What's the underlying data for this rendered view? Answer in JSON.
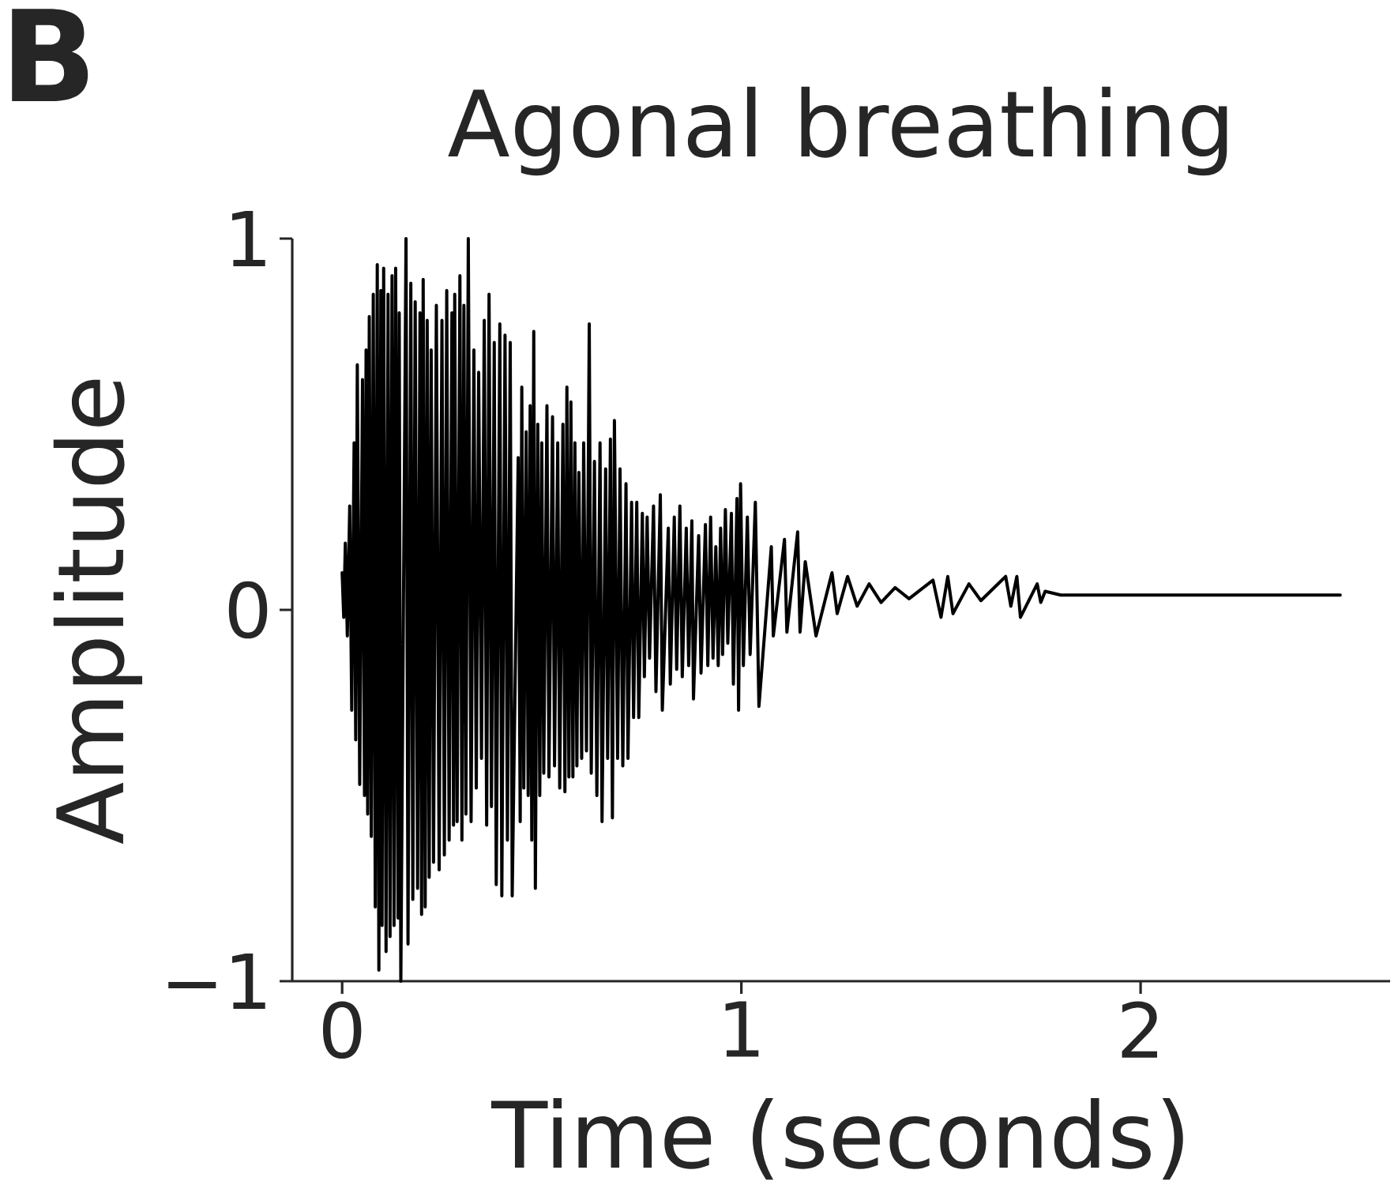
{
  "chart_data": {
    "type": "line",
    "title": "Agonal breathing",
    "xlabel": "Time (seconds)",
    "ylabel": "Amplitude",
    "annotations": [
      "B"
    ],
    "x": [
      0,
      0.004,
      0.008,
      0.013,
      0.019,
      0.024,
      0.03,
      0.034,
      0.038,
      0.044,
      0.051,
      0.056,
      0.06,
      0.064,
      0.068,
      0.073,
      0.078,
      0.083,
      0.088,
      0.092,
      0.097,
      0.1,
      0.104,
      0.11,
      0.115,
      0.12,
      0.125,
      0.13,
      0.134,
      0.14,
      0.143,
      0.147,
      0.16,
      0.165,
      0.172,
      0.177,
      0.183,
      0.189,
      0.195,
      0.199,
      0.203,
      0.208,
      0.213,
      0.218,
      0.223,
      0.229,
      0.236,
      0.243,
      0.25,
      0.256,
      0.262,
      0.268,
      0.275,
      0.279,
      0.282,
      0.288,
      0.295,
      0.3,
      0.305,
      0.31,
      0.316,
      0.323,
      0.33,
      0.336,
      0.342,
      0.349,
      0.356,
      0.362,
      0.368,
      0.374,
      0.381,
      0.386,
      0.395,
      0.4,
      0.408,
      0.414,
      0.421,
      0.426,
      0.441,
      0.446,
      0.45,
      0.455,
      0.461,
      0.466,
      0.471,
      0.475,
      0.48,
      0.484,
      0.49,
      0.495,
      0.5,
      0.505,
      0.513,
      0.518,
      0.527,
      0.532,
      0.54,
      0.545,
      0.553,
      0.558,
      0.563,
      0.568,
      0.573,
      0.578,
      0.583,
      0.588,
      0.593,
      0.6,
      0.605,
      0.612,
      0.619,
      0.624,
      0.632,
      0.638,
      0.646,
      0.651,
      0.66,
      0.665,
      0.672,
      0.677,
      0.682,
      0.69,
      0.696,
      0.703,
      0.711,
      0.716,
      0.725,
      0.73,
      0.738,
      0.743,
      0.752,
      0.757,
      0.764,
      0.77,
      0.78,
      0.786,
      0.797,
      0.802,
      0.817,
      0.822,
      0.832,
      0.838,
      0.846,
      0.852,
      0.862,
      0.868,
      0.876,
      0.88,
      0.893,
      0.899,
      0.91,
      0.916,
      0.923,
      0.929,
      0.936,
      0.942,
      0.948,
      0.953,
      0.96,
      0.966,
      0.975,
      0.98,
      0.989,
      0.993,
      0.998,
      1.005,
      1.015,
      1.022,
      1.035,
      1.044,
      1.075,
      1.08,
      1.108,
      1.114,
      1.141,
      1.147,
      1.16,
      1.187,
      1.227,
      1.24,
      1.266,
      1.29,
      1.32,
      1.35,
      1.385,
      1.42,
      1.48,
      1.5,
      1.517,
      1.53,
      1.57,
      1.6,
      1.662,
      1.675,
      1.69,
      1.699,
      1.741,
      1.75,
      1.761,
      1.8,
      2.0,
      2.25,
      2.5
    ],
    "series": [
      {
        "color": "#000000",
        "values": [
          0.1,
          -0.02,
          0.18,
          -0.07,
          0.28,
          -0.27,
          0.45,
          -0.35,
          0.66,
          -0.47,
          0.62,
          -0.5,
          0.7,
          -0.55,
          0.79,
          -0.61,
          0.85,
          -0.8,
          0.93,
          -0.97,
          0.86,
          -0.85,
          0.92,
          -0.92,
          0.85,
          -0.88,
          0.9,
          -0.85,
          0.92,
          -0.83,
          0.8,
          -1.0,
          1.0,
          -0.9,
          0.88,
          -0.78,
          0.83,
          -0.75,
          0.8,
          -0.82,
          0.89,
          -0.8,
          0.78,
          -0.72,
          0.7,
          -0.68,
          0.82,
          -0.7,
          0.78,
          -0.66,
          0.86,
          -0.62,
          0.8,
          -0.58,
          0.85,
          -0.57,
          0.9,
          -0.62,
          0.82,
          -0.55,
          1.0,
          -0.57,
          0.7,
          -0.48,
          0.64,
          -0.4,
          0.78,
          -0.58,
          0.85,
          -0.53,
          0.72,
          -0.74,
          0.77,
          -0.77,
          0.74,
          -0.62,
          0.72,
          -0.77,
          0.41,
          -0.57,
          0.6,
          -0.48,
          0.48,
          -0.5,
          0.55,
          -0.62,
          0.75,
          -0.75,
          0.5,
          -0.5,
          0.45,
          -0.44,
          0.55,
          -0.45,
          0.52,
          -0.42,
          0.45,
          -0.48,
          0.5,
          -0.49,
          0.6,
          -0.45,
          0.56,
          -0.45,
          0.45,
          -0.42,
          0.37,
          -0.4,
          0.45,
          -0.38,
          0.77,
          -0.44,
          0.4,
          -0.5,
          0.45,
          -0.57,
          0.38,
          -0.4,
          0.46,
          -0.56,
          0.51,
          -0.4,
          0.38,
          -0.42,
          0.34,
          -0.4,
          0.29,
          -0.29,
          0.29,
          -0.29,
          0.26,
          -0.18,
          0.25,
          -0.13,
          0.28,
          -0.22,
          0.31,
          -0.27,
          0.22,
          -0.2,
          0.25,
          -0.16,
          0.28,
          -0.18,
          0.22,
          -0.15,
          0.24,
          -0.24,
          0.2,
          -0.17,
          0.23,
          -0.15,
          0.25,
          -0.13,
          0.17,
          -0.15,
          0.22,
          -0.12,
          0.27,
          -0.09,
          0.26,
          -0.2,
          0.3,
          -0.27,
          0.34,
          -0.15,
          0.25,
          -0.12,
          0.29,
          -0.26,
          0.17,
          -0.07,
          0.19,
          -0.06,
          0.21,
          -0.06,
          0.13,
          -0.07,
          0.1,
          -0.01,
          0.09,
          0.01,
          0.07,
          0.02,
          0.06,
          0.03,
          0.08,
          -0.02,
          0.09,
          -0.01,
          0.07,
          0.025,
          0.09,
          0.01,
          0.09,
          -0.02,
          0.07,
          0.02,
          0.05,
          0.04,
          0.04,
          0.04,
          0.04
        ]
      }
    ],
    "xlim": [
      -0.125,
      2.625
    ],
    "ylim": [
      -1,
      1
    ],
    "xticks": [
      0,
      1,
      2
    ],
    "yticks": [
      {
        "value": -1,
        "label": "−1"
      },
      0,
      1
    ]
  }
}
